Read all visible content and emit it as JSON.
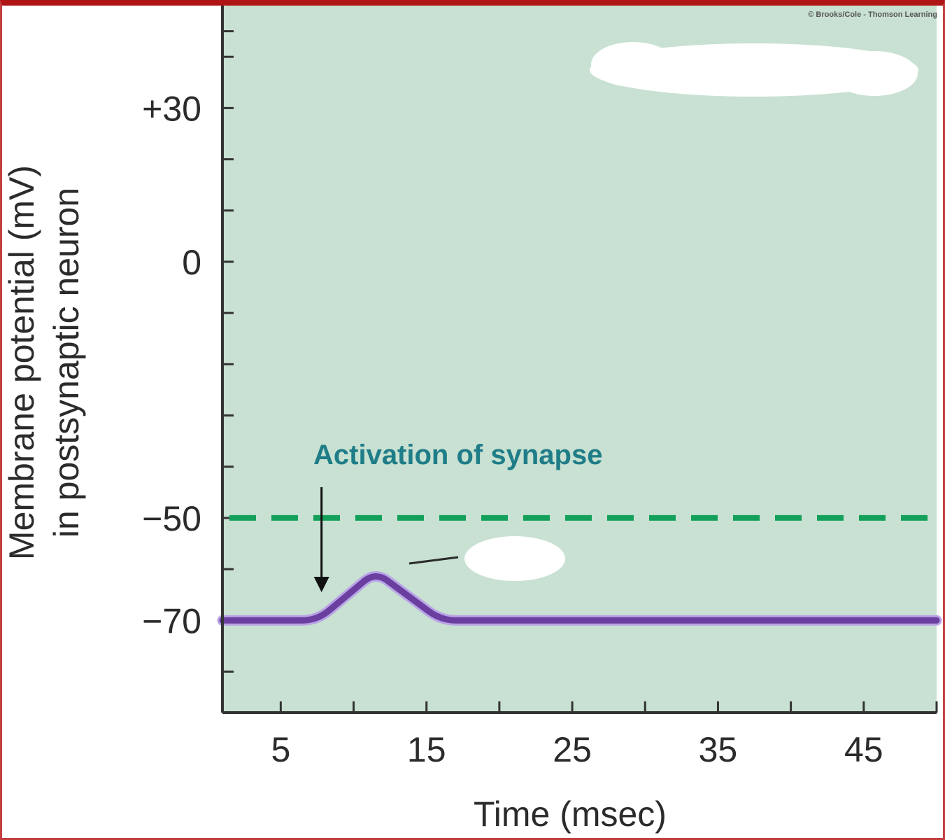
{
  "chart_data": {
    "type": "line",
    "credit": "© Brooks/Cole - Thomson Learning",
    "xlabel": "Time (msec)",
    "ylabel_line1": "Membrane potential (mV)",
    "ylabel_line2": "in postsynaptic neuron",
    "xlim": [
      1,
      50
    ],
    "ylim": [
      -88,
      50
    ],
    "x_ticks": [
      5,
      15,
      25,
      35,
      45
    ],
    "x_minor_ticks": [
      10,
      20,
      30,
      40,
      50
    ],
    "y_tick_labels": [
      {
        "value": 30,
        "label": "+30"
      },
      {
        "value": 0,
        "label": "0"
      },
      {
        "value": -50,
        "label": "−50"
      },
      {
        "value": -70,
        "label": "−70"
      }
    ],
    "y_minor_ticks": [
      45,
      40,
      20,
      10,
      -10,
      -20,
      -30,
      -40,
      -60,
      -80
    ],
    "threshold": {
      "value": -50,
      "color": "#13a05a"
    },
    "annotation": {
      "text": "Activation of synapse",
      "color": "#1f7d88",
      "x": 7.8,
      "arrow_from": -44,
      "arrow_to": -64.5
    },
    "series": [
      {
        "color": "#6a3fa0",
        "x": [
          1,
          7.5,
          11.5,
          16,
          50
        ],
        "y": [
          -70,
          -70,
          -60.5,
          -70,
          -70
        ]
      }
    ],
    "colors": {
      "plot_bg": "#c8e1d2",
      "axis": "#333333"
    }
  }
}
